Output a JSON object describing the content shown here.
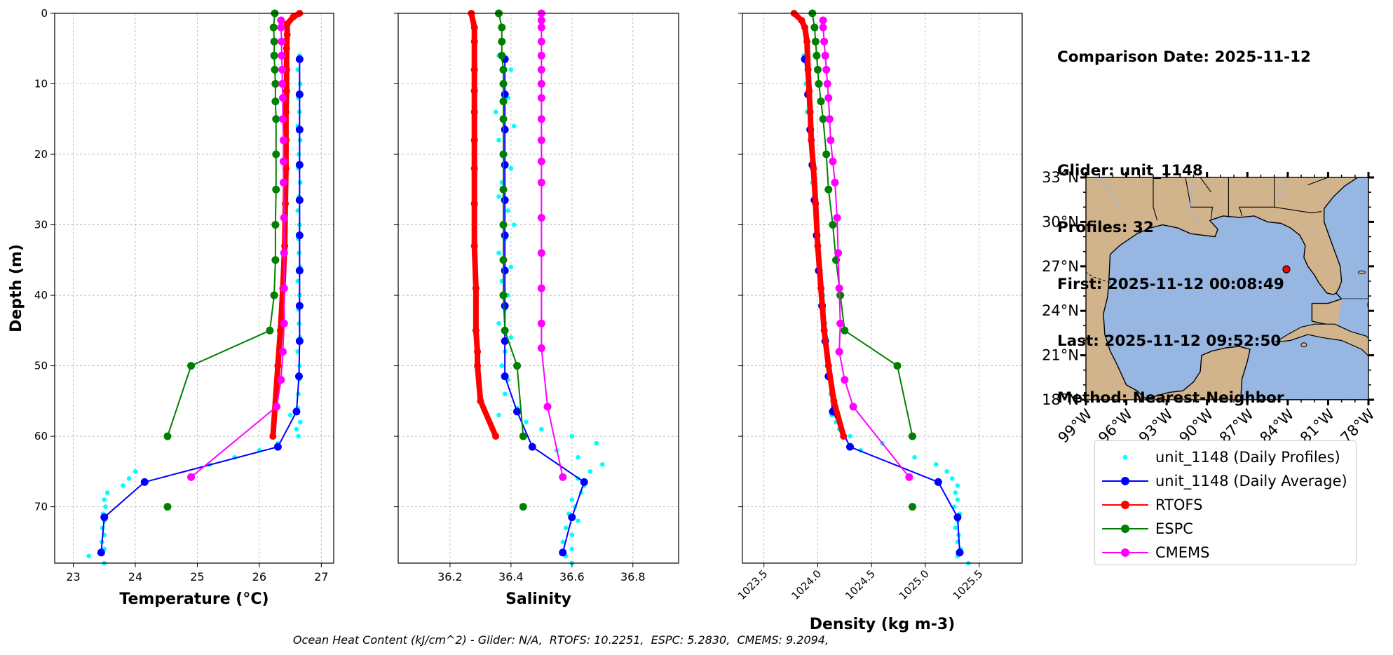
{
  "info": {
    "comparison_date": "Comparison Date: 2025-11-12",
    "glider": "Glider: unit_1148",
    "profiles": "Profiles: 32",
    "first": "First: 2025-11-12 00:08:49",
    "last": "Last: 2025-11-12 09:52:50",
    "method": "Method: Nearest-Neighbor"
  },
  "footer": "Ocean Heat Content (kJ/cm^2) - Glider: N/A,  RTOFS: 10.2251,  ESPC: 5.2830,  CMEMS: 9.2094,",
  "legend": [
    {
      "label": "unit_1148 (Daily Profiles)",
      "color": "#00ffff",
      "style": "dots"
    },
    {
      "label": "unit_1148 (Daily Average)",
      "color": "#0000ff",
      "style": "line-marker"
    },
    {
      "label": "RTOFS",
      "color": "#ff0000",
      "style": "line-marker"
    },
    {
      "label": "ESPC",
      "color": "#008000",
      "style": "line-marker"
    },
    {
      "label": "CMEMS",
      "color": "#ff00ff",
      "style": "line-marker"
    }
  ],
  "chart_data": [
    {
      "type": "line",
      "xlabel": "Temperature (°C)",
      "ylabel": "Depth (m)",
      "xlim": [
        22.7,
        27.2
      ],
      "ylim": [
        78,
        0
      ],
      "xticks": [
        23,
        24,
        25,
        26,
        27
      ],
      "yticks": [
        0,
        10,
        20,
        30,
        40,
        50,
        60,
        70
      ],
      "grid": true,
      "scatter": {
        "name": "unit_1148 (Daily Profiles)",
        "color": "#00ffff",
        "depth": [
          6,
          8,
          10,
          12,
          14,
          16,
          18,
          20,
          22,
          24,
          26,
          28,
          30,
          32,
          34,
          36,
          38,
          40,
          42,
          44,
          46,
          48,
          50,
          52,
          54,
          56,
          57,
          58,
          59,
          60,
          61,
          62,
          63,
          64,
          65,
          66,
          67,
          68,
          69,
          70,
          71,
          72,
          73,
          74,
          75,
          76,
          77,
          78
        ],
        "x": [
          26.65,
          26.62,
          26.66,
          26.63,
          26.65,
          26.62,
          26.66,
          26.64,
          26.63,
          26.66,
          26.64,
          26.62,
          26.65,
          26.63,
          26.64,
          26.66,
          26.62,
          26.65,
          26.63,
          26.64,
          26.66,
          26.62,
          26.65,
          26.64,
          26.63,
          26.62,
          26.5,
          26.66,
          26.6,
          26.63,
          26.3,
          26.0,
          25.6,
          25.2,
          24.0,
          23.9,
          23.8,
          23.55,
          23.5,
          23.52,
          23.48,
          23.5,
          23.47,
          23.5,
          23.46,
          23.5,
          23.25,
          23.5
        ]
      },
      "series": [
        {
          "name": "unit_1148 (Daily Average)",
          "color": "#0000ff",
          "width": 2,
          "x": [
            26.65,
            26.65,
            26.65,
            26.65,
            26.65,
            26.65,
            26.65,
            26.65,
            26.65,
            26.64,
            26.6,
            26.3,
            24.15,
            23.5,
            23.45
          ],
          "depth": [
            6.5,
            11.5,
            16.5,
            21.5,
            26.5,
            31.5,
            36.5,
            41.5,
            46.5,
            51.5,
            56.5,
            61.5,
            66.5,
            71.5,
            76.5
          ]
        },
        {
          "name": "RTOFS",
          "color": "#ff0000",
          "width": 8,
          "x": [
            26.65,
            26.55,
            26.45,
            26.45,
            26.44,
            26.44,
            26.44,
            26.43,
            26.43,
            26.43,
            26.42,
            26.41,
            26.38,
            26.34,
            26.3,
            26.22
          ],
          "depth": [
            0,
            0.5,
            1.5,
            3,
            5,
            8,
            11,
            14,
            18,
            22,
            27,
            33,
            39,
            45,
            50,
            60
          ]
        },
        {
          "name": "ESPC",
          "color": "#008000",
          "width": 2,
          "x": [
            26.25,
            26.23,
            26.24,
            26.24,
            26.25,
            26.26,
            26.26,
            26.27,
            26.27,
            26.27,
            26.26,
            26.26,
            26.24,
            26.17,
            24.9,
            24.52
          ],
          "depth": [
            0,
            2,
            4,
            6,
            8,
            10,
            12.5,
            15,
            20,
            25,
            30,
            35,
            40,
            45,
            50,
            60
          ]
        },
        {
          "name": "ESPC-tail",
          "color": "#008000",
          "width": 2,
          "legend": false,
          "x": [
            24.52
          ],
          "depth": [
            70
          ]
        },
        {
          "name": "CMEMS",
          "color": "#ff00ff",
          "width": 2,
          "x": [
            26.35,
            26.35,
            26.36,
            26.36,
            26.37,
            26.37,
            26.38,
            26.38,
            26.39,
            26.39,
            26.39,
            26.4,
            26.4,
            26.4,
            26.4,
            26.38,
            26.35,
            26.28,
            24.9
          ],
          "depth": [
            1,
            2,
            4,
            6,
            8,
            10,
            12,
            15,
            18,
            21,
            24,
            29,
            34,
            39,
            44,
            48,
            52,
            55.8,
            65.8
          ]
        }
      ]
    },
    {
      "type": "line",
      "xlabel": "Salinity",
      "xlim": [
        36.03,
        36.95
      ],
      "ylim": [
        78,
        0
      ],
      "xticks": [
        36.2,
        36.4,
        36.6,
        36.8
      ],
      "grid": true,
      "scatter": {
        "name": "unit_1148 (Daily Profiles)",
        "color": "#00ffff",
        "depth": [
          6,
          8,
          10,
          12,
          14,
          16,
          18,
          20,
          22,
          24,
          26,
          28,
          30,
          32,
          34,
          36,
          38,
          40,
          42,
          44,
          46,
          48,
          50,
          52,
          54,
          56,
          57,
          58,
          59,
          60,
          61,
          62,
          63,
          64,
          65,
          66,
          67,
          68,
          69,
          70,
          71,
          72,
          73,
          74,
          75,
          76,
          77,
          78
        ],
        "x": [
          36.36,
          36.4,
          36.37,
          36.39,
          36.35,
          36.41,
          36.36,
          36.38,
          36.4,
          36.37,
          36.36,
          36.39,
          36.41,
          36.38,
          36.36,
          36.4,
          36.37,
          36.39,
          36.38,
          36.36,
          36.4,
          36.38,
          36.37,
          36.39,
          36.38,
          36.42,
          36.36,
          36.45,
          36.5,
          36.6,
          36.68,
          36.55,
          36.62,
          36.7,
          36.66,
          36.62,
          36.64,
          36.63,
          36.6,
          36.61,
          36.59,
          36.62,
          36.58,
          36.6,
          36.57,
          36.6,
          36.58,
          36.6
        ]
      },
      "series": [
        {
          "name": "unit_1148 (Daily Average)",
          "color": "#0000ff",
          "width": 2,
          "x": [
            36.38,
            36.38,
            36.38,
            36.38,
            36.38,
            36.38,
            36.38,
            36.38,
            36.38,
            36.38,
            36.42,
            36.47,
            36.64,
            36.6,
            36.57
          ],
          "depth": [
            6.5,
            11.5,
            16.5,
            21.5,
            26.5,
            31.5,
            36.5,
            41.5,
            46.5,
            51.5,
            56.5,
            61.5,
            66.5,
            71.5,
            76.5
          ]
        },
        {
          "name": "RTOFS",
          "color": "#ff0000",
          "width": 8,
          "x": [
            36.27,
            36.28,
            36.28,
            36.28,
            36.28,
            36.28,
            36.28,
            36.28,
            36.28,
            36.28,
            36.285,
            36.285,
            36.29,
            36.29,
            36.3,
            36.35
          ],
          "depth": [
            0,
            2,
            4,
            8,
            11,
            14,
            18,
            22,
            27,
            33,
            39,
            45,
            48,
            50,
            55,
            60
          ]
        },
        {
          "name": "ESPC",
          "color": "#008000",
          "width": 2,
          "x": [
            36.36,
            36.37,
            36.37,
            36.37,
            36.375,
            36.375,
            36.375,
            36.375,
            36.375,
            36.375,
            36.375,
            36.375,
            36.375,
            36.38,
            36.42,
            36.44
          ],
          "depth": [
            0,
            2,
            4,
            6,
            8,
            10,
            12.5,
            15,
            20,
            25,
            30,
            35,
            40,
            45,
            50,
            60
          ]
        },
        {
          "name": "ESPC-tail",
          "color": "#008000",
          "width": 2,
          "legend": false,
          "x": [
            36.44
          ],
          "depth": [
            70
          ]
        },
        {
          "name": "CMEMS",
          "color": "#ff00ff",
          "width": 2,
          "x": [
            36.5,
            36.5,
            36.5,
            36.5,
            36.5,
            36.5,
            36.5,
            36.5,
            36.5,
            36.5,
            36.5,
            36.5,
            36.5,
            36.5,
            36.5,
            36.5,
            36.5,
            36.52,
            36.57
          ],
          "depth": [
            0,
            1,
            2,
            4,
            6,
            8,
            10,
            12,
            15,
            18,
            21,
            24,
            29,
            34,
            39,
            44,
            47.5,
            55.8,
            65.8
          ]
        }
      ]
    },
    {
      "type": "line",
      "xlabel": "Density (kg m-3)",
      "xlim": [
        1023.3,
        1025.9
      ],
      "ylim": [
        78,
        0
      ],
      "xticks": [
        1023.5,
        1024.0,
        1024.5,
        1025.0,
        1025.5
      ],
      "grid": true,
      "scatter": {
        "name": "unit_1148 (Daily Profiles)",
        "color": "#00ffff",
        "depth": [
          6,
          8,
          10,
          12,
          14,
          16,
          18,
          20,
          22,
          24,
          26,
          28,
          30,
          32,
          34,
          36,
          38,
          40,
          42,
          44,
          46,
          48,
          50,
          52,
          54,
          56,
          57,
          58,
          59,
          60,
          61,
          62,
          63,
          64,
          65,
          66,
          67,
          68,
          69,
          70,
          71,
          72,
          73,
          74,
          75,
          76,
          77,
          78
        ],
        "x": [
          1023.87,
          1023.9,
          1023.89,
          1023.92,
          1023.9,
          1023.94,
          1023.93,
          1023.95,
          1023.96,
          1023.95,
          1023.97,
          1023.98,
          1023.99,
          1024.0,
          1024.01,
          1024.02,
          1024.03,
          1024.05,
          1024.06,
          1024.07,
          1024.08,
          1024.09,
          1024.1,
          1024.11,
          1024.12,
          1024.14,
          1024.13,
          1024.17,
          1024.2,
          1024.3,
          1024.6,
          1024.4,
          1024.9,
          1025.1,
          1025.2,
          1025.25,
          1025.3,
          1025.28,
          1025.3,
          1025.27,
          1025.32,
          1025.3,
          1025.28,
          1025.31,
          1025.3,
          1025.33,
          1025.3,
          1025.4
        ]
      },
      "series": [
        {
          "name": "unit_1148 (Daily Average)",
          "color": "#0000ff",
          "width": 2,
          "x": [
            1023.88,
            1023.91,
            1023.93,
            1023.95,
            1023.97,
            1023.99,
            1024.01,
            1024.04,
            1024.07,
            1024.1,
            1024.14,
            1024.3,
            1025.12,
            1025.3,
            1025.32
          ],
          "depth": [
            6.5,
            11.5,
            16.5,
            21.5,
            26.5,
            31.5,
            36.5,
            41.5,
            46.5,
            51.5,
            56.5,
            61.5,
            66.5,
            71.5,
            76.5
          ]
        },
        {
          "name": "RTOFS",
          "color": "#ff0000",
          "width": 8,
          "x": [
            1023.78,
            1023.85,
            1023.88,
            1023.9,
            1023.91,
            1023.92,
            1023.93,
            1023.94,
            1023.96,
            1023.98,
            1024.0,
            1024.03,
            1024.06,
            1024.1,
            1024.15,
            1024.24
          ],
          "depth": [
            0,
            1,
            2,
            4,
            8,
            11,
            14,
            18,
            22,
            27,
            33,
            39,
            45,
            50,
            55,
            60
          ]
        },
        {
          "name": "ESPC",
          "color": "#008000",
          "width": 2,
          "x": [
            1023.95,
            1023.97,
            1023.98,
            1023.99,
            1024.0,
            1024.01,
            1024.03,
            1024.05,
            1024.08,
            1024.1,
            1024.14,
            1024.17,
            1024.21,
            1024.25,
            1024.74,
            1024.88
          ],
          "depth": [
            0,
            2,
            4,
            6,
            8,
            10,
            12.5,
            15,
            20,
            25,
            30,
            35,
            40,
            45,
            50,
            60
          ]
        },
        {
          "name": "ESPC-tail",
          "color": "#008000",
          "width": 2,
          "legend": false,
          "x": [
            1024.88
          ],
          "depth": [
            70
          ]
        },
        {
          "name": "CMEMS",
          "color": "#ff00ff",
          "width": 2,
          "x": [
            1024.05,
            1024.05,
            1024.06,
            1024.07,
            1024.08,
            1024.09,
            1024.1,
            1024.11,
            1024.12,
            1024.14,
            1024.16,
            1024.18,
            1024.19,
            1024.2,
            1024.21,
            1024.2,
            1024.25,
            1024.33,
            1024.85
          ],
          "depth": [
            1,
            2,
            4,
            6,
            8,
            10,
            12,
            15,
            18,
            21,
            24,
            29,
            34,
            39,
            44,
            48,
            52,
            55.8,
            65.8
          ]
        }
      ]
    }
  ],
  "map": {
    "lat_ticks": [
      "33°N",
      "30°N",
      "27°N",
      "24°N",
      "21°N",
      "18°N"
    ],
    "lon_ticks": [
      "99°W",
      "96°W",
      "93°W",
      "90°W",
      "87°W",
      "84°W",
      "81°W",
      "78°W"
    ],
    "lat_range": [
      18,
      33
    ],
    "lon_range": [
      -99,
      -78
    ],
    "glider_position": [
      -84.1,
      26.8
    ],
    "land_color": "#d2b48c",
    "water_color": "#97b6e1",
    "marker_color": "#ff0000"
  }
}
